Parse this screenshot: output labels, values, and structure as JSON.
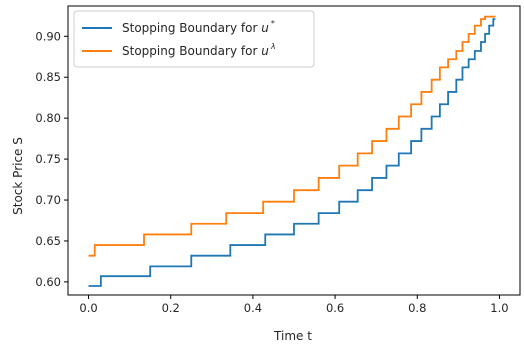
{
  "chart_data": {
    "type": "line",
    "xlabel": "Time t",
    "ylabel": "Stock Price S",
    "xlim": [
      -0.05,
      1.05
    ],
    "ylim": [
      0.584,
      0.937
    ],
    "xticks": [
      0.0,
      0.2,
      0.4,
      0.6,
      0.8,
      1.0
    ],
    "xtick_labels": [
      "0.0",
      "0.2",
      "0.4",
      "0.6",
      "0.8",
      "1.0"
    ],
    "yticks": [
      0.6,
      0.65,
      0.7,
      0.75,
      0.8,
      0.85,
      0.9
    ],
    "ytick_labels": [
      "0.60",
      "0.65",
      "0.70",
      "0.75",
      "0.80",
      "0.85",
      "0.90"
    ],
    "grid": false,
    "legend_position": "top-left",
    "series": [
      {
        "name": "Stopping Boundary for u*",
        "label_text": "Stopping Boundary for ",
        "label_var": "u",
        "label_sup": "*",
        "color": "#1f77b4",
        "x": [
          0.0,
          0.03,
          0.15,
          0.25,
          0.345,
          0.43,
          0.5,
          0.56,
          0.61,
          0.655,
          0.69,
          0.725,
          0.755,
          0.785,
          0.81,
          0.835,
          0.855,
          0.875,
          0.895,
          0.91,
          0.925,
          0.94,
          0.955,
          0.965,
          0.975,
          0.985
        ],
        "y": [
          0.595,
          0.607,
          0.619,
          0.632,
          0.645,
          0.658,
          0.671,
          0.684,
          0.698,
          0.712,
          0.727,
          0.742,
          0.757,
          0.772,
          0.787,
          0.802,
          0.817,
          0.832,
          0.847,
          0.862,
          0.872,
          0.882,
          0.893,
          0.903,
          0.913,
          0.921
        ]
      },
      {
        "name": "Stopping Boundary for u^λ",
        "label_text": "Stopping Boundary for ",
        "label_var": "u",
        "label_sup": "λ",
        "color": "#ff7f0e",
        "x": [
          0.0,
          0.015,
          0.135,
          0.25,
          0.335,
          0.425,
          0.5,
          0.56,
          0.61,
          0.655,
          0.69,
          0.725,
          0.755,
          0.785,
          0.81,
          0.835,
          0.855,
          0.875,
          0.895,
          0.91,
          0.925,
          0.94,
          0.955,
          0.965,
          0.975,
          0.985
        ],
        "y": [
          0.632,
          0.645,
          0.658,
          0.671,
          0.684,
          0.698,
          0.712,
          0.727,
          0.742,
          0.757,
          0.772,
          0.787,
          0.802,
          0.817,
          0.832,
          0.847,
          0.862,
          0.872,
          0.882,
          0.893,
          0.903,
          0.913,
          0.921,
          0.924,
          0.924,
          0.924
        ]
      }
    ]
  }
}
